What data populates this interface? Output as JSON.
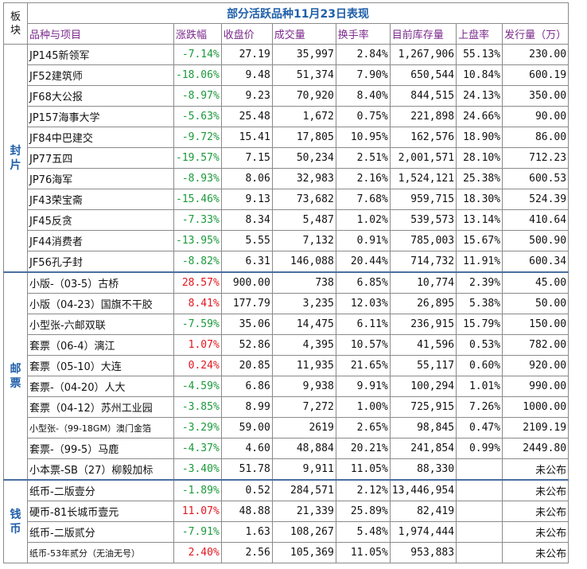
{
  "table": {
    "corner": [
      "板",
      "块"
    ],
    "title": "部分活跃品种11月23日表现",
    "headers": [
      "品种与项目",
      "涨跌幅",
      "收盘价",
      "成交量",
      "换手率",
      "目前库存量",
      "上盘率",
      "发行量（万）"
    ],
    "groups": [
      {
        "label": [
          "封",
          "片"
        ],
        "rows": [
          {
            "name": "JP145新领军",
            "change": "-7.14%",
            "close": "27.19",
            "volume": "35,997",
            "turnover": "2.84%",
            "stock": "1,267,906",
            "rate": "55.13%",
            "issue": "230.00"
          },
          {
            "name": "JF52建筑师",
            "change": "-18.06%",
            "close": "9.48",
            "volume": "51,374",
            "turnover": "7.90%",
            "stock": "650,544",
            "rate": "10.84%",
            "issue": "600.19"
          },
          {
            "name": "JF68大公报",
            "change": "-8.97%",
            "close": "9.23",
            "volume": "70,920",
            "turnover": "8.40%",
            "stock": "844,515",
            "rate": "24.13%",
            "issue": "350.00"
          },
          {
            "name": "JP157海事大学",
            "change": "-5.63%",
            "close": "25.48",
            "volume": "1,672",
            "turnover": "0.75%",
            "stock": "221,898",
            "rate": "24.66%",
            "issue": "90.00"
          },
          {
            "name": "JF84中巴建交",
            "change": "-9.72%",
            "close": "15.41",
            "volume": "17,805",
            "turnover": "10.95%",
            "stock": "162,576",
            "rate": "18.90%",
            "issue": "86.00"
          },
          {
            "name": "JP77五四",
            "change": "-19.57%",
            "close": "7.15",
            "volume": "50,234",
            "turnover": "2.51%",
            "stock": "2,001,571",
            "rate": "28.10%",
            "issue": "712.23"
          },
          {
            "name": "JP76海军",
            "change": "-8.93%",
            "close": "8.06",
            "volume": "32,983",
            "turnover": "2.16%",
            "stock": "1,524,121",
            "rate": "25.38%",
            "issue": "600.53"
          },
          {
            "name": "JF43荣宝斋",
            "change": "-15.46%",
            "close": "9.13",
            "volume": "73,682",
            "turnover": "7.68%",
            "stock": "959,715",
            "rate": "18.30%",
            "issue": "524.39"
          },
          {
            "name": "JF45反贪",
            "change": "-7.33%",
            "close": "8.34",
            "volume": "5,487",
            "turnover": "1.02%",
            "stock": "539,573",
            "rate": "13.14%",
            "issue": "410.64"
          },
          {
            "name": "JF44消费者",
            "change": "-13.95%",
            "close": "5.55",
            "volume": "7,132",
            "turnover": "0.91%",
            "stock": "785,003",
            "rate": "15.67%",
            "issue": "500.90"
          },
          {
            "name": "JF56孔子封",
            "change": "-8.82%",
            "close": "6.31",
            "volume": "146,088",
            "turnover": "20.44%",
            "stock": "714,732",
            "rate": "11.91%",
            "issue": "600.34"
          }
        ]
      },
      {
        "label": [
          "邮",
          "票"
        ],
        "rows": [
          {
            "name": "小版-（03-5）古桥",
            "change": "28.57%",
            "close": "900.00",
            "volume": "738",
            "turnover": "6.85%",
            "stock": "10,774",
            "rate": "2.39%",
            "issue": "45.00"
          },
          {
            "name": "小版（04-23）国旗不干胶",
            "change": "8.41%",
            "close": "177.79",
            "volume": "3,235",
            "turnover": "12.03%",
            "stock": "26,895",
            "rate": "5.38%",
            "issue": "50.00"
          },
          {
            "name": "小型张-六邮双联",
            "change": "-7.59%",
            "close": "35.06",
            "volume": "14,475",
            "turnover": "6.11%",
            "stock": "236,915",
            "rate": "15.79%",
            "issue": "150.00"
          },
          {
            "name": "套票（06-4）漓江",
            "change": "1.07%",
            "close": "52.86",
            "volume": "4,395",
            "turnover": "10.57%",
            "stock": "41,596",
            "rate": "0.53%",
            "issue": "782.00"
          },
          {
            "name": "套票（05-10）大连",
            "change": "0.24%",
            "close": "20.85",
            "volume": "11,935",
            "turnover": "21.65%",
            "stock": "55,117",
            "rate": "0.60%",
            "issue": "920.00"
          },
          {
            "name": "套票-（04-20）人大",
            "change": "-4.59%",
            "close": "6.86",
            "volume": "9,938",
            "turnover": "9.91%",
            "stock": "100,294",
            "rate": "1.01%",
            "issue": "990.00"
          },
          {
            "name": "套票（04-12）苏州工业园",
            "change": "-3.85%",
            "close": "8.99",
            "volume": "7,272",
            "turnover": "1.00%",
            "stock": "725,915",
            "rate": "7.26%",
            "issue": "1000.00"
          },
          {
            "name": "小型张-（99-18GM）澳门金箔",
            "change": "-3.29%",
            "close": "59.00",
            "volume": "2619",
            "turnover": "2.65%",
            "stock": "98,845",
            "rate": "0.47%",
            "issue": "2109.19",
            "small": true
          },
          {
            "name": "套票-（99-5）马鹿",
            "change": "-4.37%",
            "close": "4.60",
            "volume": "48,884",
            "turnover": "20.21%",
            "stock": "241,854",
            "rate": "0.99%",
            "issue": "2449.80"
          },
          {
            "name": "小本票-SB（27）柳毅加标",
            "change": "-3.40%",
            "close": "51.78",
            "volume": "9,911",
            "turnover": "11.05%",
            "stock": "88,330",
            "rate": "",
            "issue": "未公布"
          }
        ]
      },
      {
        "label": [
          "钱",
          "币"
        ],
        "rows": [
          {
            "name": "纸币-二版壹分",
            "change": "-1.89%",
            "close": "0.52",
            "volume": "284,571",
            "turnover": "2.12%",
            "stock": "13,446,954",
            "rate": "",
            "issue": "未公布"
          },
          {
            "name": "硬币-81长城币壹元",
            "change": "11.07%",
            "close": "48.88",
            "volume": "21,339",
            "turnover": "25.89%",
            "stock": "82,419",
            "rate": "",
            "issue": "未公布"
          },
          {
            "name": "纸币-二版贰分",
            "change": "-7.91%",
            "close": "1.63",
            "volume": "108,267",
            "turnover": "5.48%",
            "stock": "1,974,444",
            "rate": "",
            "issue": "未公布"
          },
          {
            "name": "纸币-53年贰分（无油无号）",
            "change": "2.40%",
            "close": "2.56",
            "volume": "105,369",
            "turnover": "11.05%",
            "stock": "953,883",
            "rate": "",
            "issue": "未公布",
            "small": true
          }
        ]
      }
    ]
  }
}
